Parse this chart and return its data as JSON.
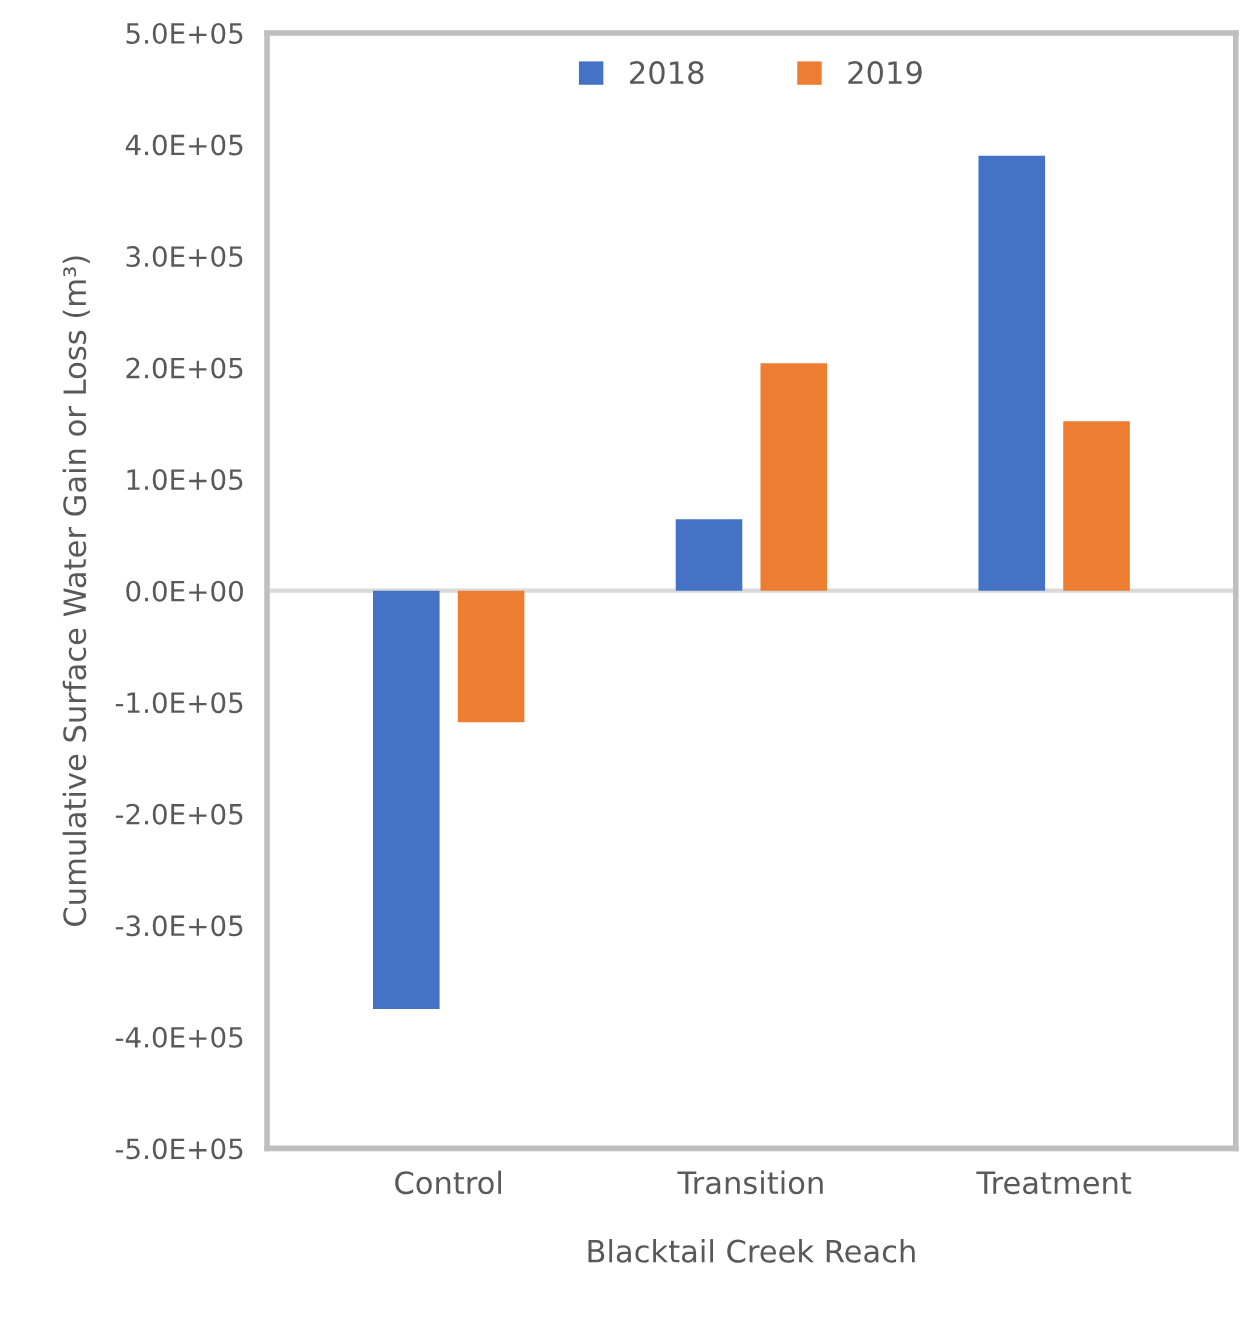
{
  "chart_data": {
    "type": "bar",
    "xlabel": "Blacktail Creek Reach",
    "ylabel": "Cumulative Surface Water Gain or Loss (m³)",
    "categories": [
      "Control",
      "Transition",
      "Treatment"
    ],
    "series": [
      {
        "name": "2018",
        "color": "#4472c4",
        "values": [
          -375000,
          64000,
          390000
        ]
      },
      {
        "name": "2019",
        "color": "#ed7d31",
        "values": [
          -118000,
          204000,
          152000
        ]
      }
    ],
    "ylim": [
      -500000,
      500000
    ],
    "yticks": [
      {
        "value": -500000,
        "label": "-5.0E+05"
      },
      {
        "value": -400000,
        "label": "-4.0E+05"
      },
      {
        "value": -300000,
        "label": "-3.0E+05"
      },
      {
        "value": -200000,
        "label": "-2.0E+05"
      },
      {
        "value": -100000,
        "label": "-1.0E+05"
      },
      {
        "value": 0,
        "label": "0.0E+00"
      },
      {
        "value": 100000,
        "label": "1.0E+05"
      },
      {
        "value": 200000,
        "label": "2.0E+05"
      },
      {
        "value": 300000,
        "label": "3.0E+05"
      },
      {
        "value": 400000,
        "label": "4.0E+05"
      },
      {
        "value": 500000,
        "label": "5.0E+05"
      }
    ],
    "ref_lines": [
      {
        "axis": "y",
        "value": 0,
        "color": "#d9d9d9"
      }
    ],
    "grid": false,
    "legend": "top"
  }
}
